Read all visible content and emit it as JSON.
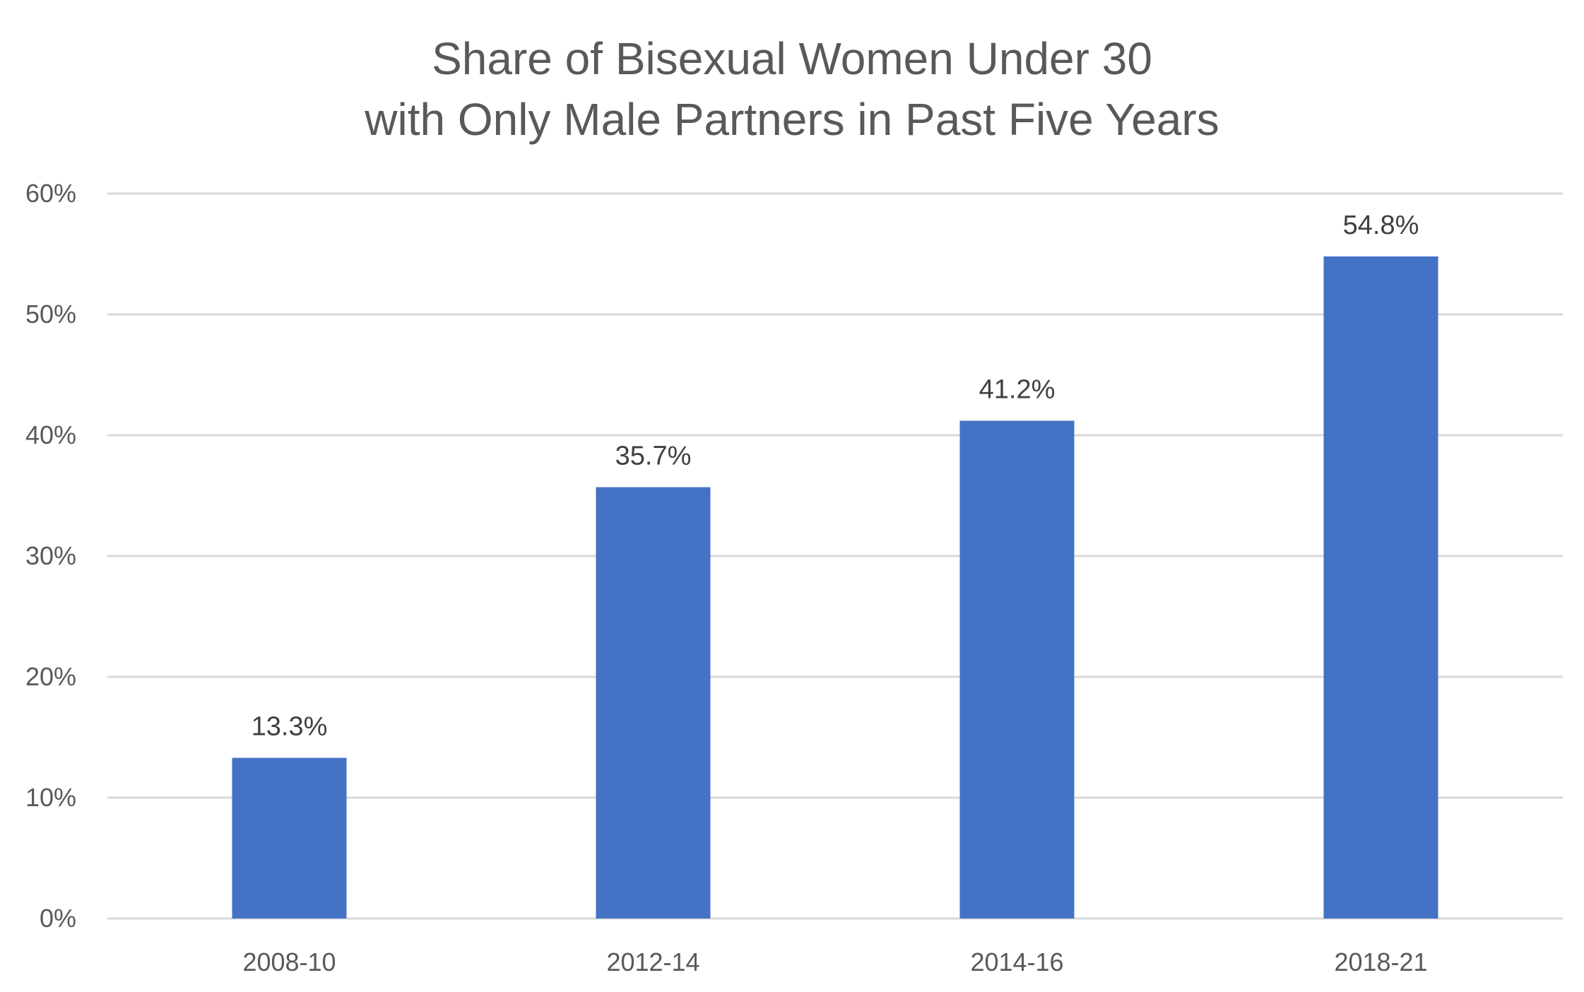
{
  "chart_data": {
    "type": "bar",
    "title": "Share of Bisexual Women Under 30 with Only Male Partners in Past Five Years",
    "title_lines": [
      "Share of Bisexual Women Under 30",
      "with Only Male Partners in Past Five Years"
    ],
    "categories": [
      "2008-10",
      "2012-14",
      "2014-16",
      "2018-21"
    ],
    "values": [
      13.3,
      35.7,
      41.2,
      54.8
    ],
    "data_labels": [
      "13.3%",
      "35.7%",
      "41.2%",
      "54.8%"
    ],
    "y_ticks": [
      0,
      10,
      20,
      30,
      40,
      50,
      60
    ],
    "y_tick_labels": [
      "0%",
      "10%",
      "20%",
      "30%",
      "40%",
      "50%",
      "60%"
    ],
    "ylim": [
      0,
      60
    ],
    "xlabel": "",
    "ylabel": "",
    "grid": true,
    "legend": "none",
    "bar_color": "#4472C4",
    "grid_color": "#D9D9D9"
  }
}
